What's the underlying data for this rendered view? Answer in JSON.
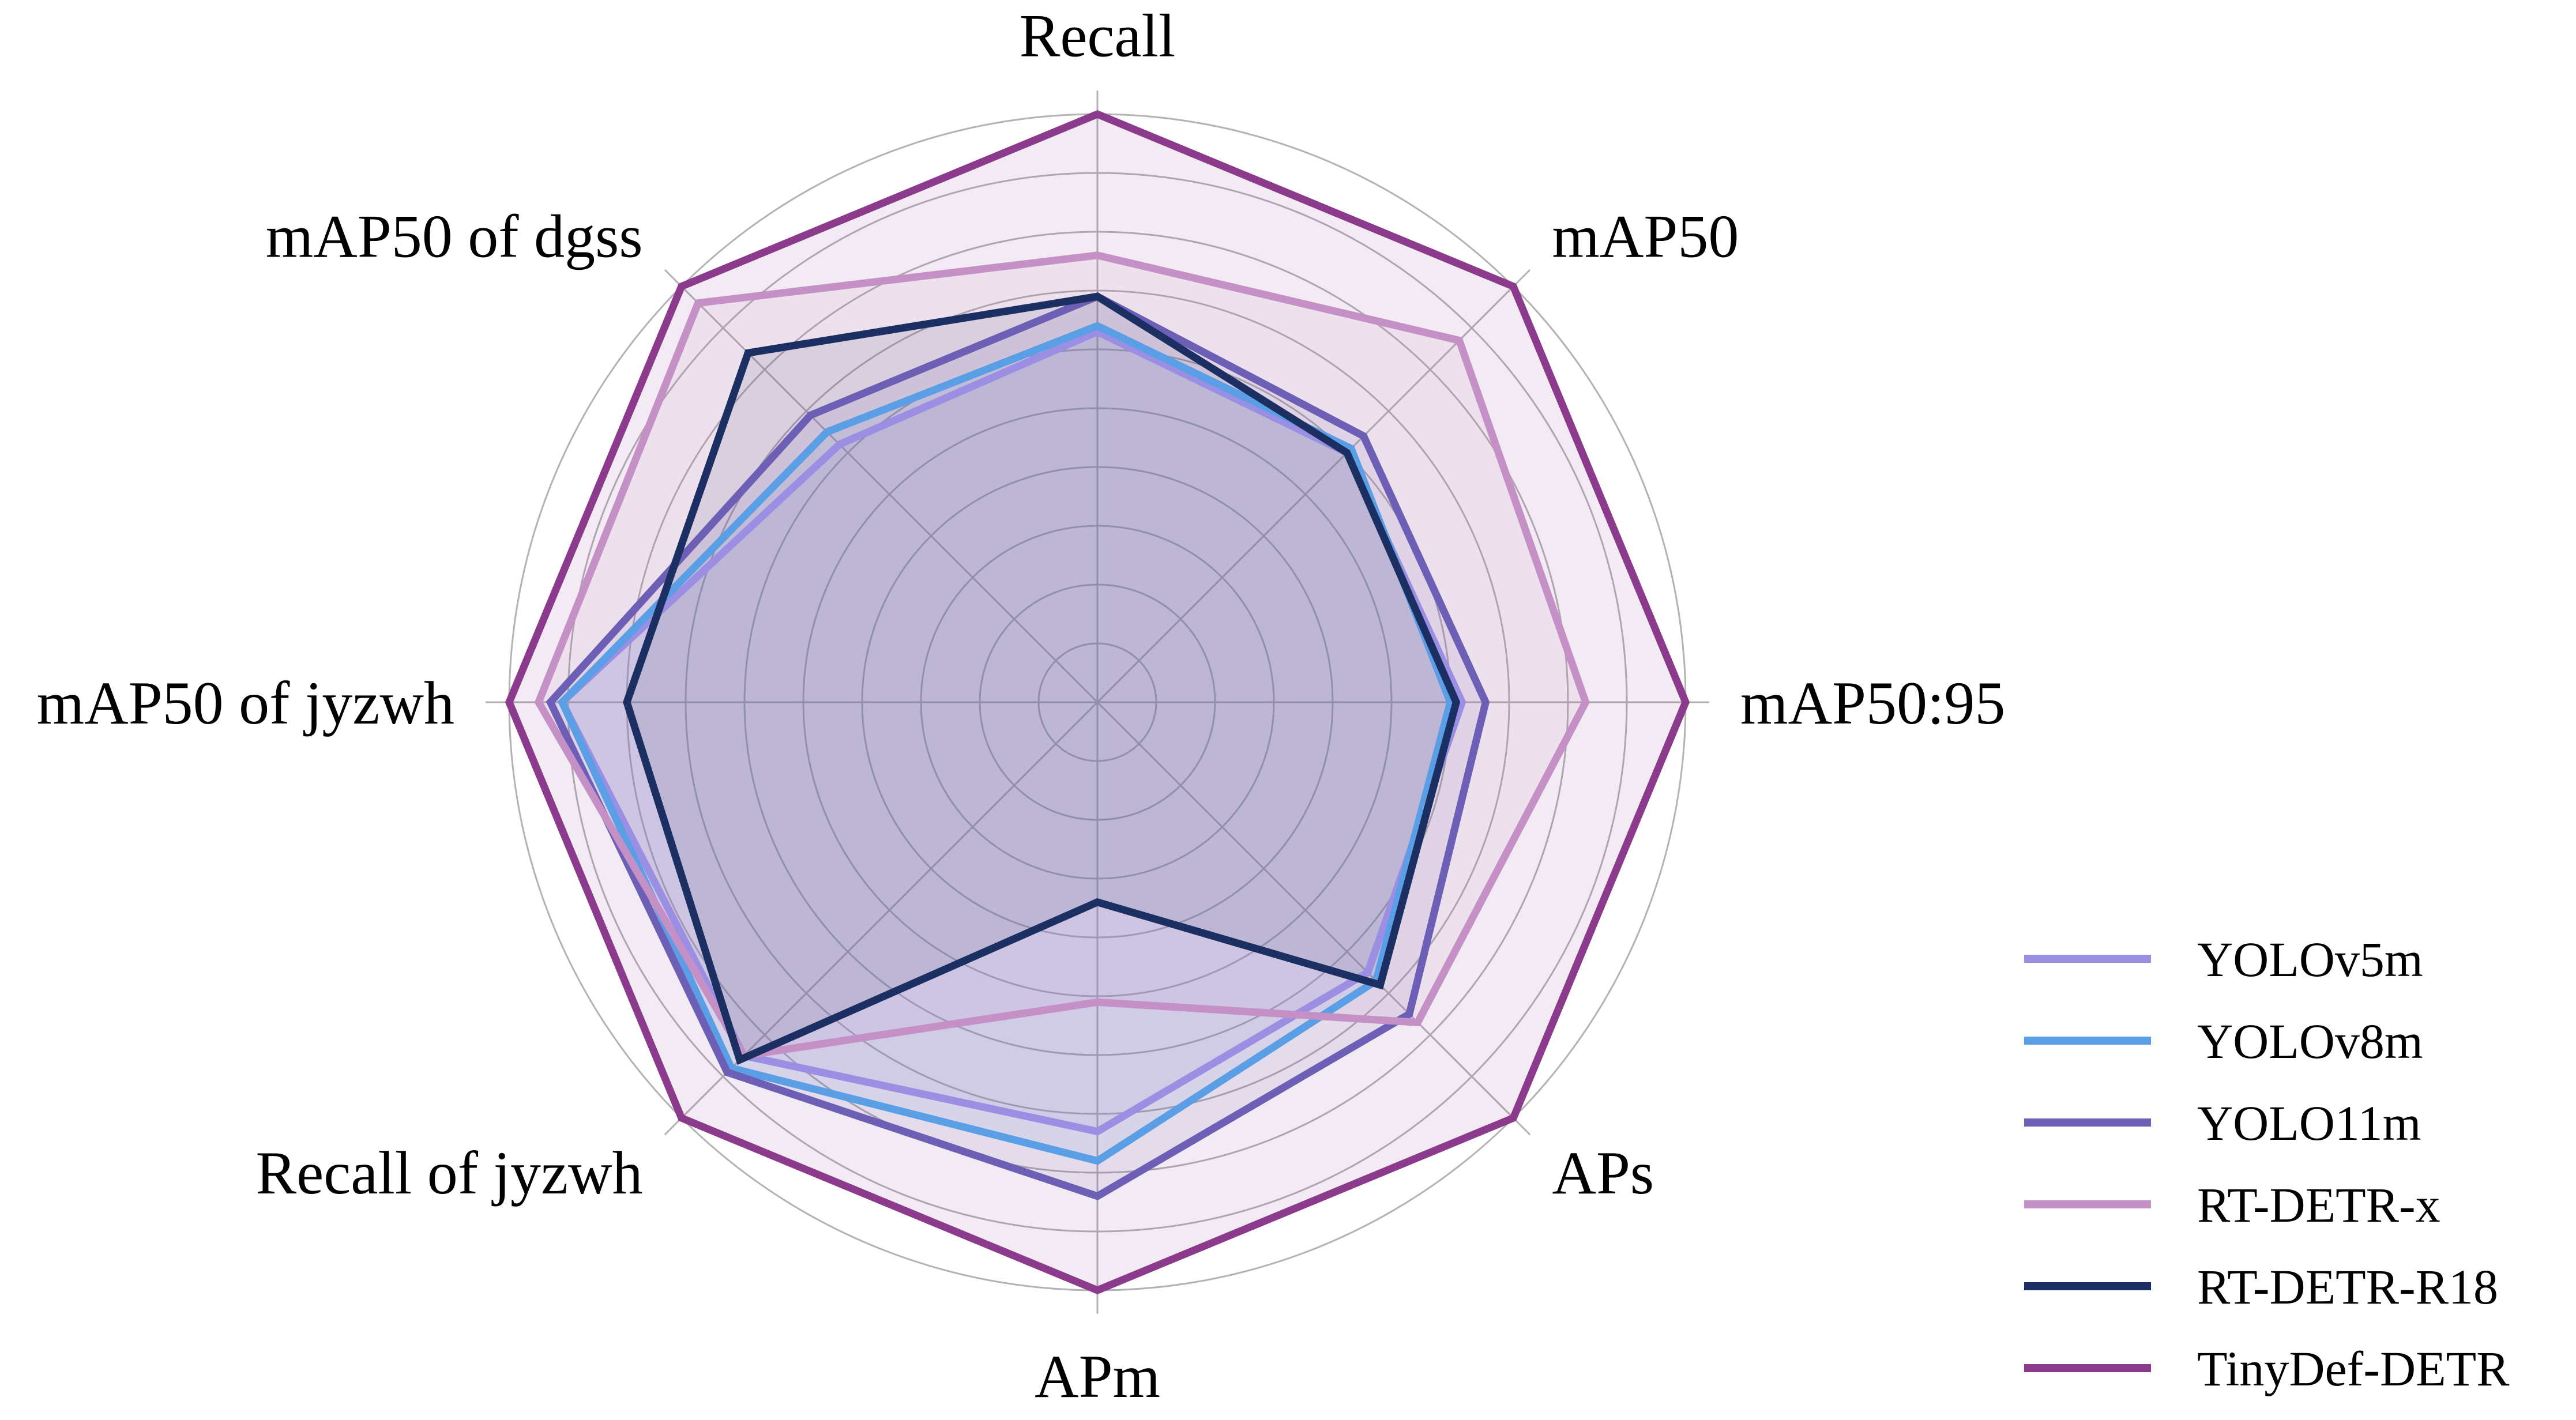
{
  "chart_data": {
    "type": "radar",
    "title": "",
    "axes": [
      "Recall",
      "mAP50",
      "mAP50:95",
      "APs",
      "APm",
      "Recall of jyzwh",
      "mAP50 of jyzwh",
      "mAP50 of dgss"
    ],
    "rings": 10,
    "grid": true,
    "legend_position": "bottom-right",
    "series": [
      {
        "name": "YOLOv5m",
        "color": "#9b8fe3",
        "values": [
          0.63,
          0.6,
          0.62,
          0.65,
          0.73,
          0.85,
          0.91,
          0.62
        ]
      },
      {
        "name": "YOLOv8m",
        "color": "#5a9fe6",
        "values": [
          0.64,
          0.61,
          0.6,
          0.67,
          0.78,
          0.88,
          0.91,
          0.65
        ]
      },
      {
        "name": "YOLO11m",
        "color": "#6c5fb5",
        "values": [
          0.69,
          0.64,
          0.66,
          0.75,
          0.84,
          0.89,
          0.93,
          0.69
        ]
      },
      {
        "name": "RT-DETR-x",
        "color": "#c490c6",
        "values": [
          0.76,
          0.87,
          0.83,
          0.77,
          0.51,
          0.85,
          0.95,
          0.96
        ]
      },
      {
        "name": "RT-DETR-R18",
        "color": "#1c2f62",
        "values": [
          0.69,
          0.6,
          0.61,
          0.68,
          0.34,
          0.86,
          0.8,
          0.84
        ]
      },
      {
        "name": "TinyDef-DETR",
        "color": "#8b3a8c",
        "values": [
          1.0,
          1.0,
          1.0,
          1.0,
          1.0,
          1.0,
          1.0,
          1.0
        ]
      }
    ]
  }
}
